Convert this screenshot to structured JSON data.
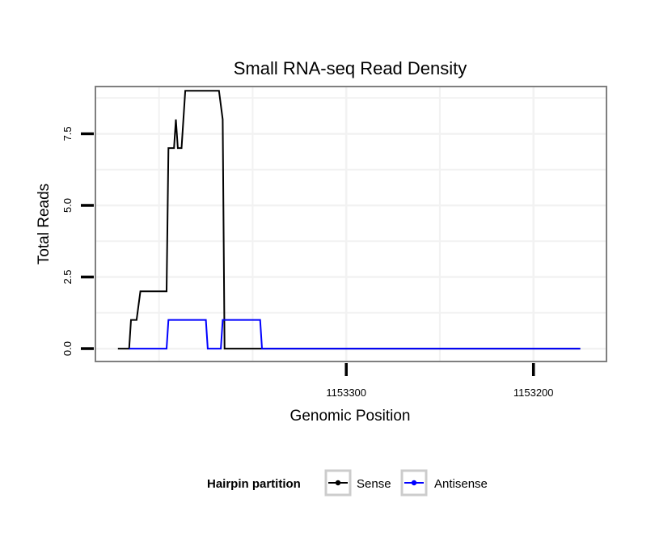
{
  "chart_data": {
    "type": "line",
    "title": "Small RNA-seq Read Density",
    "xlabel": "Genomic Position",
    "ylabel": "Total Reads",
    "x_reversed": true,
    "xlim": [
      1153434,
      1153161
    ],
    "ylim": [
      -0.45,
      9.15
    ],
    "x_ticks": [
      {
        "value": 1153300,
        "label": "1153300"
      },
      {
        "value": 1153200,
        "label": "1153200"
      }
    ],
    "y_ticks": [
      {
        "value": 0,
        "label": "0.0"
      },
      {
        "value": 2.5,
        "label": "2.5"
      },
      {
        "value": 5,
        "label": "5.0"
      },
      {
        "value": 7.5,
        "label": "7.5"
      }
    ],
    "grid": true,
    "legend": {
      "title": "Hairpin partition",
      "position": "bottom"
    },
    "series": [
      {
        "name": "Sense",
        "color": "#000000",
        "points": [
          [
            1153422,
            0
          ],
          [
            1153416,
            0
          ],
          [
            1153415,
            1
          ],
          [
            1153412,
            1
          ],
          [
            1153410,
            2
          ],
          [
            1153396,
            2
          ],
          [
            1153395,
            7
          ],
          [
            1153392,
            7
          ],
          [
            1153391,
            8
          ],
          [
            1153390,
            7
          ],
          [
            1153388,
            7
          ],
          [
            1153386,
            9
          ],
          [
            1153368,
            9
          ],
          [
            1153366,
            8
          ],
          [
            1153365,
            0
          ],
          [
            1153175,
            0
          ]
        ]
      },
      {
        "name": "Antisense",
        "color": "#0000ff",
        "points": [
          [
            1153416,
            0
          ],
          [
            1153396,
            0
          ],
          [
            1153395,
            1
          ],
          [
            1153375,
            1
          ],
          [
            1153374,
            0
          ],
          [
            1153367,
            0
          ],
          [
            1153366,
            1
          ],
          [
            1153346,
            1
          ],
          [
            1153345,
            0
          ],
          [
            1153175,
            0
          ]
        ]
      }
    ]
  }
}
